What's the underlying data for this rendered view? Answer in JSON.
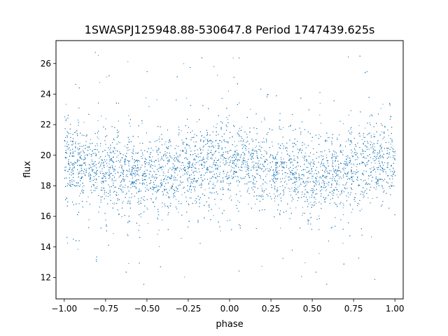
{
  "chart_data": {
    "type": "scatter",
    "title": "1SWASPJ125948.88-530647.8 Period 1747439.625s",
    "xlabel": "phase",
    "ylabel": "flux",
    "xlim": [
      -1.05,
      1.05
    ],
    "ylim": [
      10.6,
      27.5
    ],
    "xticks": [
      {
        "value": -1.0,
        "label": "−1.00"
      },
      {
        "value": -0.75,
        "label": "−0.75"
      },
      {
        "value": -0.5,
        "label": "−0.50"
      },
      {
        "value": -0.25,
        "label": "−0.25"
      },
      {
        "value": 0.0,
        "label": "0.00"
      },
      {
        "value": 0.25,
        "label": "0.25"
      },
      {
        "value": 0.5,
        "label": "0.50"
      },
      {
        "value": 0.75,
        "label": "0.75"
      },
      {
        "value": 1.0,
        "label": "1.00"
      }
    ],
    "yticks": [
      {
        "value": 12,
        "label": "12"
      },
      {
        "value": 14,
        "label": "14"
      },
      {
        "value": 16,
        "label": "16"
      },
      {
        "value": 18,
        "label": "18"
      },
      {
        "value": 20,
        "label": "20"
      },
      {
        "value": 22,
        "label": "22"
      },
      {
        "value": 24,
        "label": "24"
      },
      {
        "value": 26,
        "label": "26"
      }
    ],
    "grid": false,
    "legend": "none",
    "marker_color": "#1f77b4",
    "series": [
      {
        "x_range": [
          -1.0,
          1.0
        ],
        "approx_points": 30000,
        "median_profile": [
          {
            "phase": -1.0,
            "flux": 19.6
          },
          {
            "phase": -0.9,
            "flux": 19.3
          },
          {
            "phase": -0.75,
            "flux": 19.2
          },
          {
            "phase": -0.6,
            "flux": 18.9
          },
          {
            "phase": -0.5,
            "flux": 18.6
          },
          {
            "phase": -0.35,
            "flux": 18.9
          },
          {
            "phase": -0.2,
            "flux": 19.2
          },
          {
            "phase": -0.1,
            "flux": 19.6
          },
          {
            "phase": 0.0,
            "flux": 19.6
          },
          {
            "phase": 0.1,
            "flux": 19.3
          },
          {
            "phase": 0.25,
            "flux": 19.2
          },
          {
            "phase": 0.4,
            "flux": 18.9
          },
          {
            "phase": 0.5,
            "flux": 18.6
          },
          {
            "phase": 0.65,
            "flux": 18.9
          },
          {
            "phase": 0.8,
            "flux": 19.2
          },
          {
            "phase": 0.9,
            "flux": 19.6
          },
          {
            "phase": 1.0,
            "flux": 19.6
          }
        ],
        "flux_min": 11.3,
        "flux_max": 26.8
      }
    ]
  }
}
